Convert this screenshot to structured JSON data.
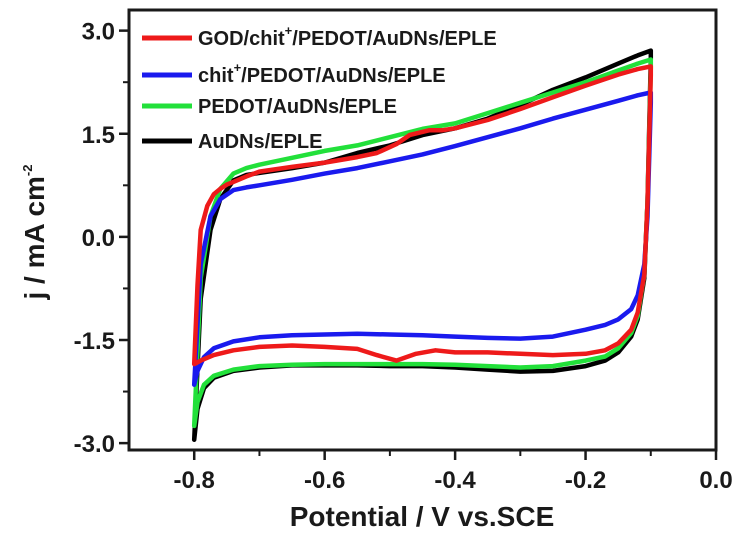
{
  "chart_data": {
    "type": "line",
    "title": "",
    "xlabel": "Potential / V vs.SCE",
    "ylabel": {
      "base": "j / mA cm",
      "sup": "-2"
    },
    "xlim": [
      -0.9,
      0.0
    ],
    "ylim": [
      -3.1,
      3.3
    ],
    "x_ticks": [
      -0.8,
      -0.6,
      -0.4,
      -0.2,
      0.0
    ],
    "x_tick_labels": [
      "-0.8",
      "-0.6",
      "-0.4",
      "-0.2",
      "0.0"
    ],
    "y_ticks": [
      -3.0,
      -1.5,
      0.0,
      1.5,
      3.0
    ],
    "y_tick_labels": [
      "-3.0",
      "-1.5",
      "0.0",
      "1.5",
      "3.0"
    ],
    "legend_position": "top-left",
    "series": [
      {
        "name": "AuDNs/EPLE",
        "legend": {
          "pre": "AuDNs/EPLE",
          "sup": "",
          "post": ""
        },
        "color": "#000000",
        "x": [
          -0.8,
          -0.79,
          -0.775,
          -0.76,
          -0.74,
          -0.72,
          -0.7,
          -0.65,
          -0.6,
          -0.55,
          -0.5,
          -0.45,
          -0.4,
          -0.35,
          -0.3,
          -0.25,
          -0.2,
          -0.15,
          -0.12,
          -0.1,
          -0.1,
          -0.105,
          -0.11,
          -0.12,
          -0.13,
          -0.15,
          -0.17,
          -0.2,
          -0.25,
          -0.3,
          -0.35,
          -0.4,
          -0.45,
          -0.5,
          -0.55,
          -0.6,
          -0.65,
          -0.7,
          -0.74,
          -0.77,
          -0.785,
          -0.795,
          -0.8
        ],
        "y": [
          -2.95,
          -0.9,
          0.1,
          0.55,
          0.82,
          0.9,
          0.93,
          1.0,
          1.08,
          1.22,
          1.33,
          1.48,
          1.58,
          1.72,
          1.92,
          2.14,
          2.32,
          2.52,
          2.64,
          2.71,
          2.6,
          0.5,
          -0.6,
          -1.2,
          -1.45,
          -1.68,
          -1.8,
          -1.88,
          -1.95,
          -1.96,
          -1.93,
          -1.9,
          -1.88,
          -1.88,
          -1.87,
          -1.87,
          -1.87,
          -1.9,
          -1.95,
          -2.05,
          -2.2,
          -2.5,
          -2.95
        ]
      },
      {
        "name": "PEDOT/AuDNs/EPLE",
        "legend": {
          "pre": "PEDOT/AuDNs/EPLE",
          "sup": "",
          "post": ""
        },
        "color": "#22e03a",
        "x": [
          -0.8,
          -0.79,
          -0.775,
          -0.76,
          -0.74,
          -0.72,
          -0.7,
          -0.65,
          -0.6,
          -0.55,
          -0.5,
          -0.45,
          -0.4,
          -0.35,
          -0.3,
          -0.25,
          -0.2,
          -0.15,
          -0.12,
          -0.1,
          -0.1,
          -0.105,
          -0.11,
          -0.12,
          -0.13,
          -0.15,
          -0.17,
          -0.2,
          -0.25,
          -0.3,
          -0.35,
          -0.4,
          -0.45,
          -0.5,
          -0.55,
          -0.6,
          -0.65,
          -0.7,
          -0.74,
          -0.77,
          -0.785,
          -0.795,
          -0.8
        ],
        "y": [
          -2.75,
          -0.6,
          0.3,
          0.7,
          0.92,
          1.0,
          1.05,
          1.15,
          1.25,
          1.33,
          1.45,
          1.57,
          1.65,
          1.8,
          1.95,
          2.1,
          2.25,
          2.42,
          2.52,
          2.58,
          2.45,
          0.5,
          -0.55,
          -1.15,
          -1.4,
          -1.62,
          -1.74,
          -1.8,
          -1.88,
          -1.9,
          -1.88,
          -1.86,
          -1.85,
          -1.85,
          -1.85,
          -1.85,
          -1.86,
          -1.88,
          -1.93,
          -2.02,
          -2.15,
          -2.4,
          -2.75
        ]
      },
      {
        "name": "chit+/PEDOT/AuDNs/EPLE",
        "legend": {
          "pre": "chit",
          "sup": "+",
          "post": "/PEDOT/AuDNs/EPLE"
        },
        "color": "#1a1aee",
        "x": [
          -0.8,
          -0.79,
          -0.775,
          -0.76,
          -0.74,
          -0.72,
          -0.7,
          -0.65,
          -0.6,
          -0.55,
          -0.5,
          -0.45,
          -0.4,
          -0.35,
          -0.3,
          -0.25,
          -0.2,
          -0.15,
          -0.12,
          -0.1,
          -0.1,
          -0.105,
          -0.11,
          -0.12,
          -0.13,
          -0.15,
          -0.17,
          -0.2,
          -0.25,
          -0.3,
          -0.35,
          -0.4,
          -0.45,
          -0.5,
          -0.55,
          -0.6,
          -0.65,
          -0.7,
          -0.74,
          -0.77,
          -0.785,
          -0.795,
          -0.8
        ],
        "y": [
          -2.15,
          -0.4,
          0.3,
          0.55,
          0.68,
          0.72,
          0.75,
          0.83,
          0.92,
          1.0,
          1.1,
          1.2,
          1.32,
          1.45,
          1.58,
          1.72,
          1.85,
          1.98,
          2.06,
          2.1,
          1.95,
          0.3,
          -0.4,
          -0.85,
          -1.05,
          -1.2,
          -1.28,
          -1.35,
          -1.45,
          -1.48,
          -1.47,
          -1.45,
          -1.43,
          -1.42,
          -1.41,
          -1.42,
          -1.43,
          -1.46,
          -1.52,
          -1.62,
          -1.75,
          -1.95,
          -2.15
        ]
      },
      {
        "name": "GOD/chit+/PEDOT/AuDNs/EPLE",
        "legend": {
          "pre": "GOD/chit",
          "sup": "+",
          "post": "/PEDOT/AuDNs/EPLE"
        },
        "color": "#ee1a1a",
        "x": [
          -0.8,
          -0.795,
          -0.79,
          -0.78,
          -0.77,
          -0.76,
          -0.75,
          -0.74,
          -0.72,
          -0.7,
          -0.65,
          -0.6,
          -0.55,
          -0.52,
          -0.49,
          -0.47,
          -0.44,
          -0.42,
          -0.4,
          -0.35,
          -0.3,
          -0.25,
          -0.2,
          -0.15,
          -0.12,
          -0.1,
          -0.1,
          -0.105,
          -0.11,
          -0.12,
          -0.13,
          -0.15,
          -0.17,
          -0.2,
          -0.25,
          -0.3,
          -0.35,
          -0.4,
          -0.43,
          -0.46,
          -0.49,
          -0.52,
          -0.55,
          -0.6,
          -0.65,
          -0.7,
          -0.74,
          -0.77,
          -0.79,
          -0.8
        ],
        "y": [
          -1.85,
          -0.7,
          0.1,
          0.45,
          0.62,
          0.7,
          0.76,
          0.8,
          0.88,
          0.95,
          1.02,
          1.08,
          1.16,
          1.22,
          1.35,
          1.48,
          1.55,
          1.55,
          1.58,
          1.7,
          1.86,
          2.03,
          2.2,
          2.36,
          2.44,
          2.48,
          2.35,
          0.5,
          -0.55,
          -1.1,
          -1.35,
          -1.55,
          -1.65,
          -1.7,
          -1.72,
          -1.7,
          -1.68,
          -1.68,
          -1.65,
          -1.7,
          -1.8,
          -1.72,
          -1.63,
          -1.6,
          -1.58,
          -1.6,
          -1.65,
          -1.72,
          -1.8,
          -1.85
        ]
      }
    ]
  }
}
